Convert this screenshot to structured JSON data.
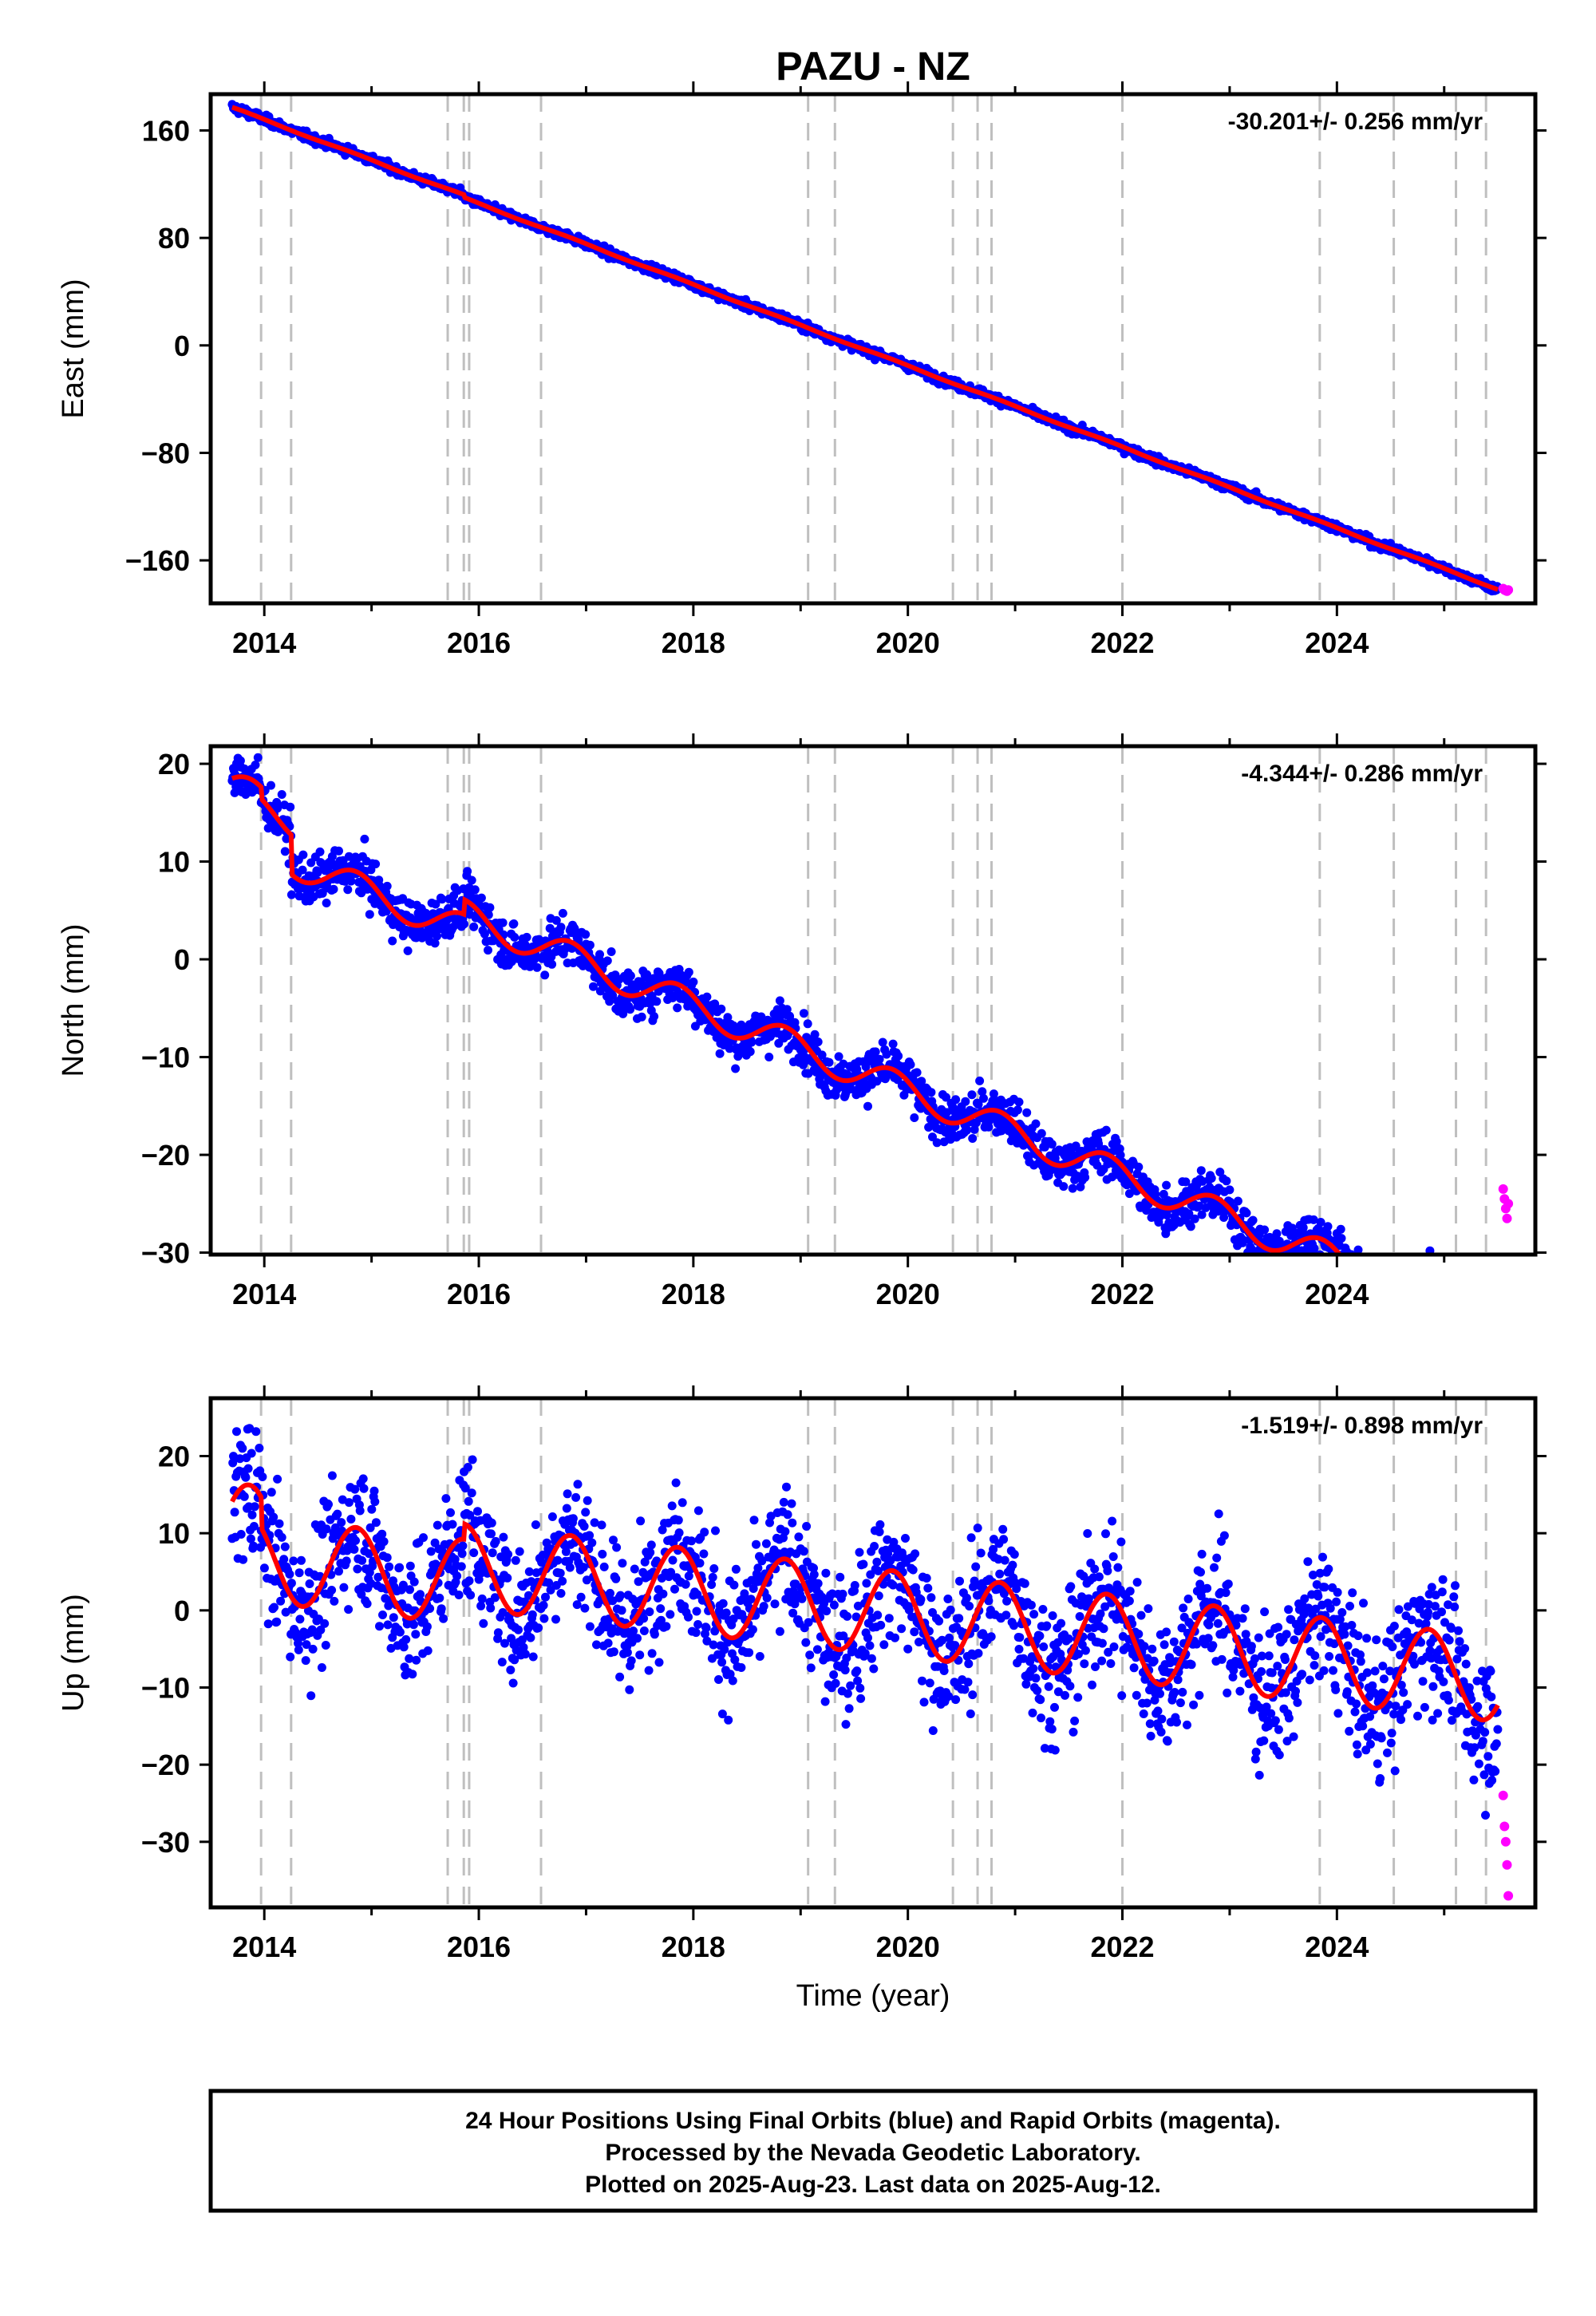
{
  "title": "PAZU - NZ",
  "xlabel": "Time (year)",
  "footer": {
    "line1": "24 Hour Positions Using Final Orbits (blue) and Rapid Orbits (magenta).",
    "line2": "Processed by the Nevada Geodetic Laboratory.",
    "line3": "Plotted on 2025-Aug-23. Last data on 2025-Aug-12."
  },
  "colors": {
    "final": "#0000ff",
    "rapid": "#ff00ff",
    "model": "#ff0000",
    "events": "#bfbfbf"
  },
  "chart_data": {
    "type": "scatter",
    "x_ticks": [
      2014,
      2016,
      2018,
      2020,
      2022,
      2024
    ],
    "xlim": [
      2013.5,
      2025.85
    ],
    "event_lines": [
      2013.97,
      2014.25,
      2015.71,
      2015.86,
      2015.91,
      2016.58,
      2019.07,
      2019.32,
      2020.42,
      2020.65,
      2020.78,
      2022.0,
      2023.84,
      2024.53,
      2025.11,
      2025.39
    ],
    "panels": [
      {
        "id": "east",
        "ylabel": "East (mm)",
        "ylim": [
          -192,
          187
        ],
        "y_ticks": [
          160,
          80,
          0,
          -80,
          -160
        ],
        "rate": "-30.201+/- 0.256 mm/yr",
        "rate_mm_yr": -30.201,
        "y_at_start": 177,
        "noise": 1.6,
        "seasonal_amplitude": 0.5,
        "events": [
          {
            "t": 2015.86,
            "offset": -2
          }
        ],
        "rapid_y": [
          -181,
          -182,
          -182.5,
          -183,
          -182
        ]
      },
      {
        "id": "north",
        "ylabel": "North (mm)",
        "ylim": [
          -30.2,
          21.8
        ],
        "y_ticks": [
          20,
          10,
          0,
          -10,
          -20,
          -30
        ],
        "rate": "-4.344+/- 0.286 mm/yr",
        "rate_mm_yr": -4.344,
        "y_at_start": 17.6,
        "noise": 1.2,
        "seasonal_amplitude": 1.6,
        "events": [
          {
            "t": 2013.97,
            "offset": -1.2
          },
          {
            "t": 2014.25,
            "offset": -4
          },
          {
            "t": 2015.86,
            "offset": 1.5
          }
        ],
        "rapid_y": [
          -23.5,
          -24.5,
          -25.5,
          -26.5,
          -25
        ]
      },
      {
        "id": "up",
        "ylabel": "Up (mm)",
        "ylim": [
          -38.5,
          27.5
        ],
        "y_ticks": [
          20,
          10,
          0,
          -10,
          -20,
          -30
        ],
        "rate": "-1.519+/- 0.898 mm/yr",
        "rate_mm_yr": -1.519,
        "y_at_start": 11,
        "noise": 4.5,
        "seasonal_amplitude": 5.5,
        "events": [
          {
            "t": 2013.97,
            "offset": -4
          },
          {
            "t": 2015.86,
            "offset": 2
          }
        ],
        "rapid_y": [
          -24,
          -28,
          -30,
          -33,
          -37
        ]
      }
    ]
  }
}
